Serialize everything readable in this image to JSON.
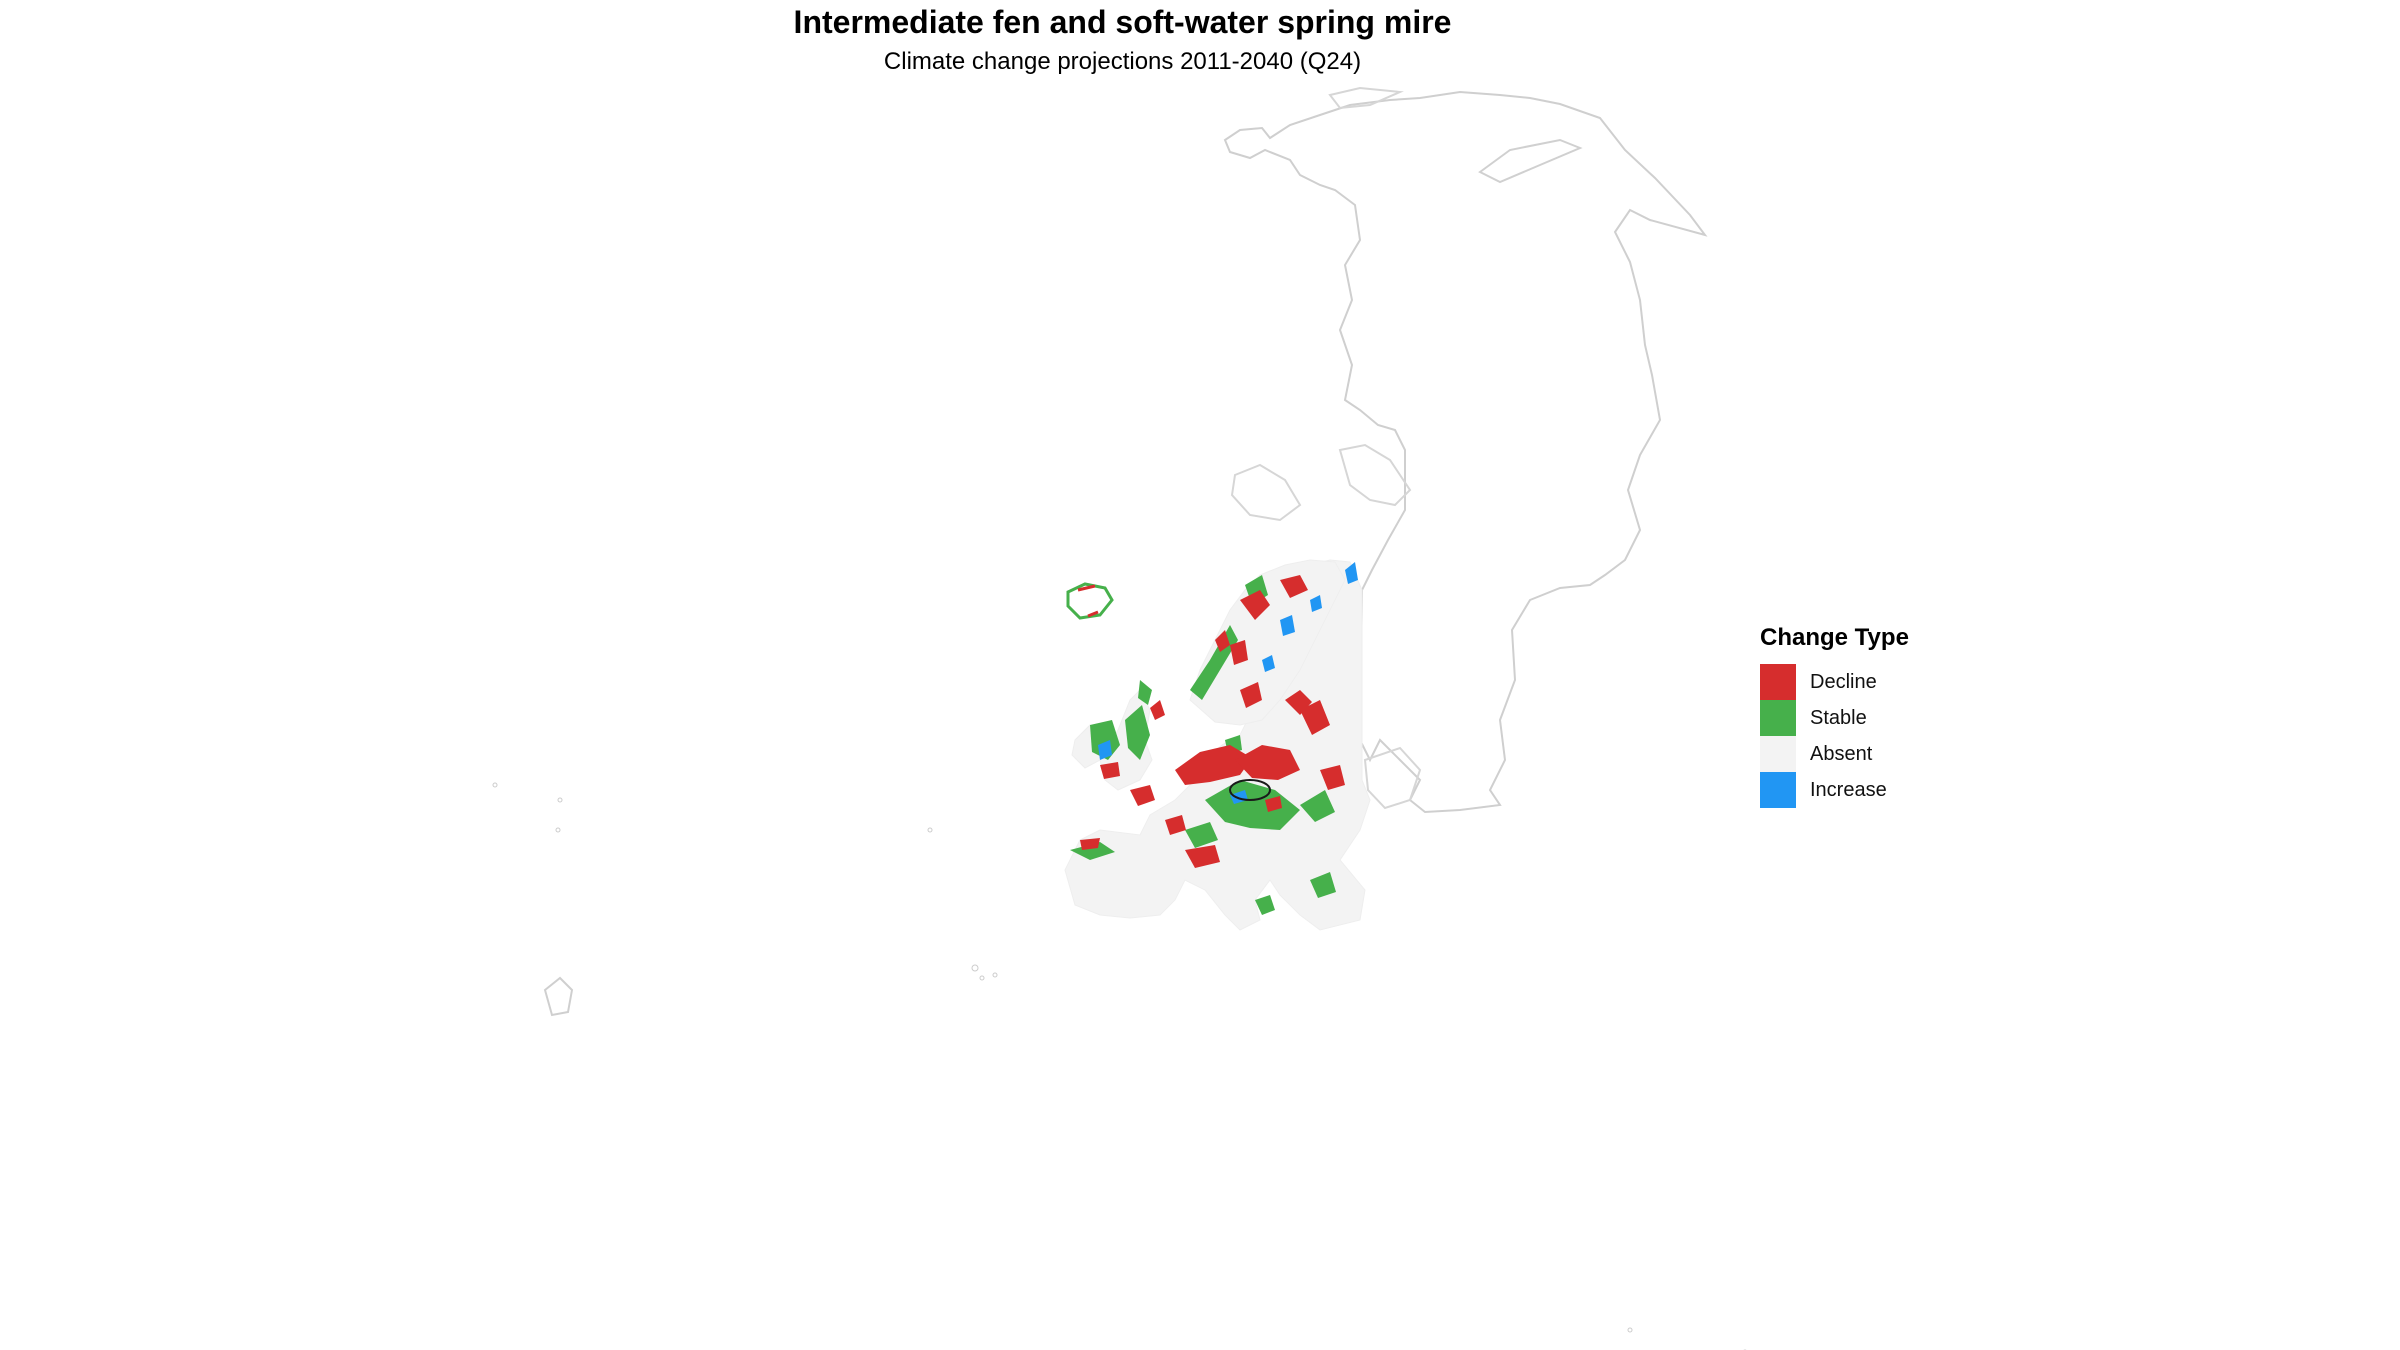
{
  "title": "Intermediate fen and soft-water spring mire",
  "subtitle": "Climate change projections 2011-2040 (Q24)",
  "legend": {
    "title": "Change Type",
    "items": [
      {
        "label": "Decline",
        "color": "#d62d2d"
      },
      {
        "label": "Stable",
        "color": "#46b04b"
      },
      {
        "label": "Absent",
        "color": "#f3f3f3"
      },
      {
        "label": "Increase",
        "color": "#2196f3"
      }
    ]
  }
}
